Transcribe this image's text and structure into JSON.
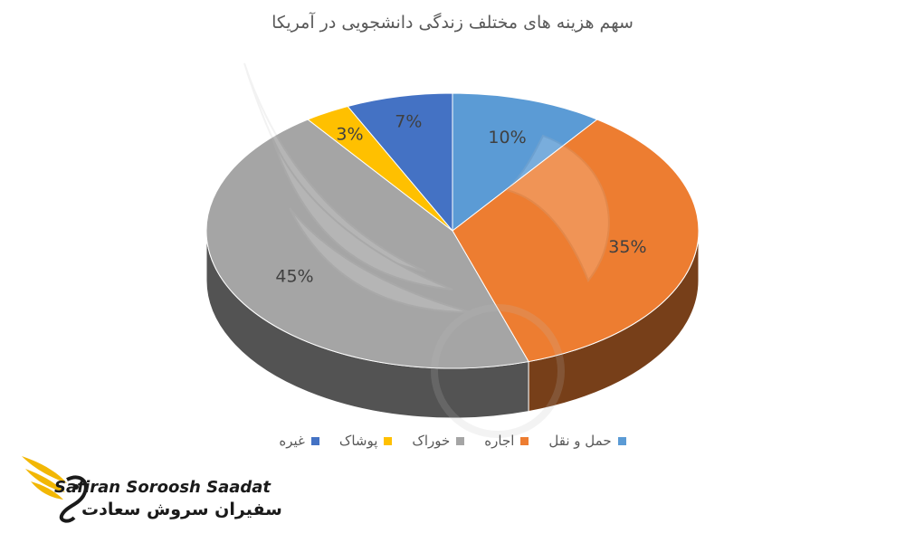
{
  "chart_data": {
    "type": "pie",
    "title": "سهم هزینه های مختلف زندگی دانشجویی در آمریکا",
    "categories": [
      "حمل و نقل",
      "اجاره",
      "خوراک",
      "پوشاک",
      "غیره"
    ],
    "values": [
      10,
      35,
      45,
      3,
      7
    ],
    "value_labels": [
      "10%",
      "35%",
      "45%",
      "3%",
      "7%"
    ],
    "colors": [
      "#5b9bd5",
      "#ed7d31",
      "#a5a5a5",
      "#ffc000",
      "#4472c4"
    ],
    "legend_position": "bottom",
    "style": "3d"
  },
  "watermark": {
    "brand_en": "Safiran Soroosh Saadat",
    "brand_fa": "سفیران سروش سعادت"
  }
}
